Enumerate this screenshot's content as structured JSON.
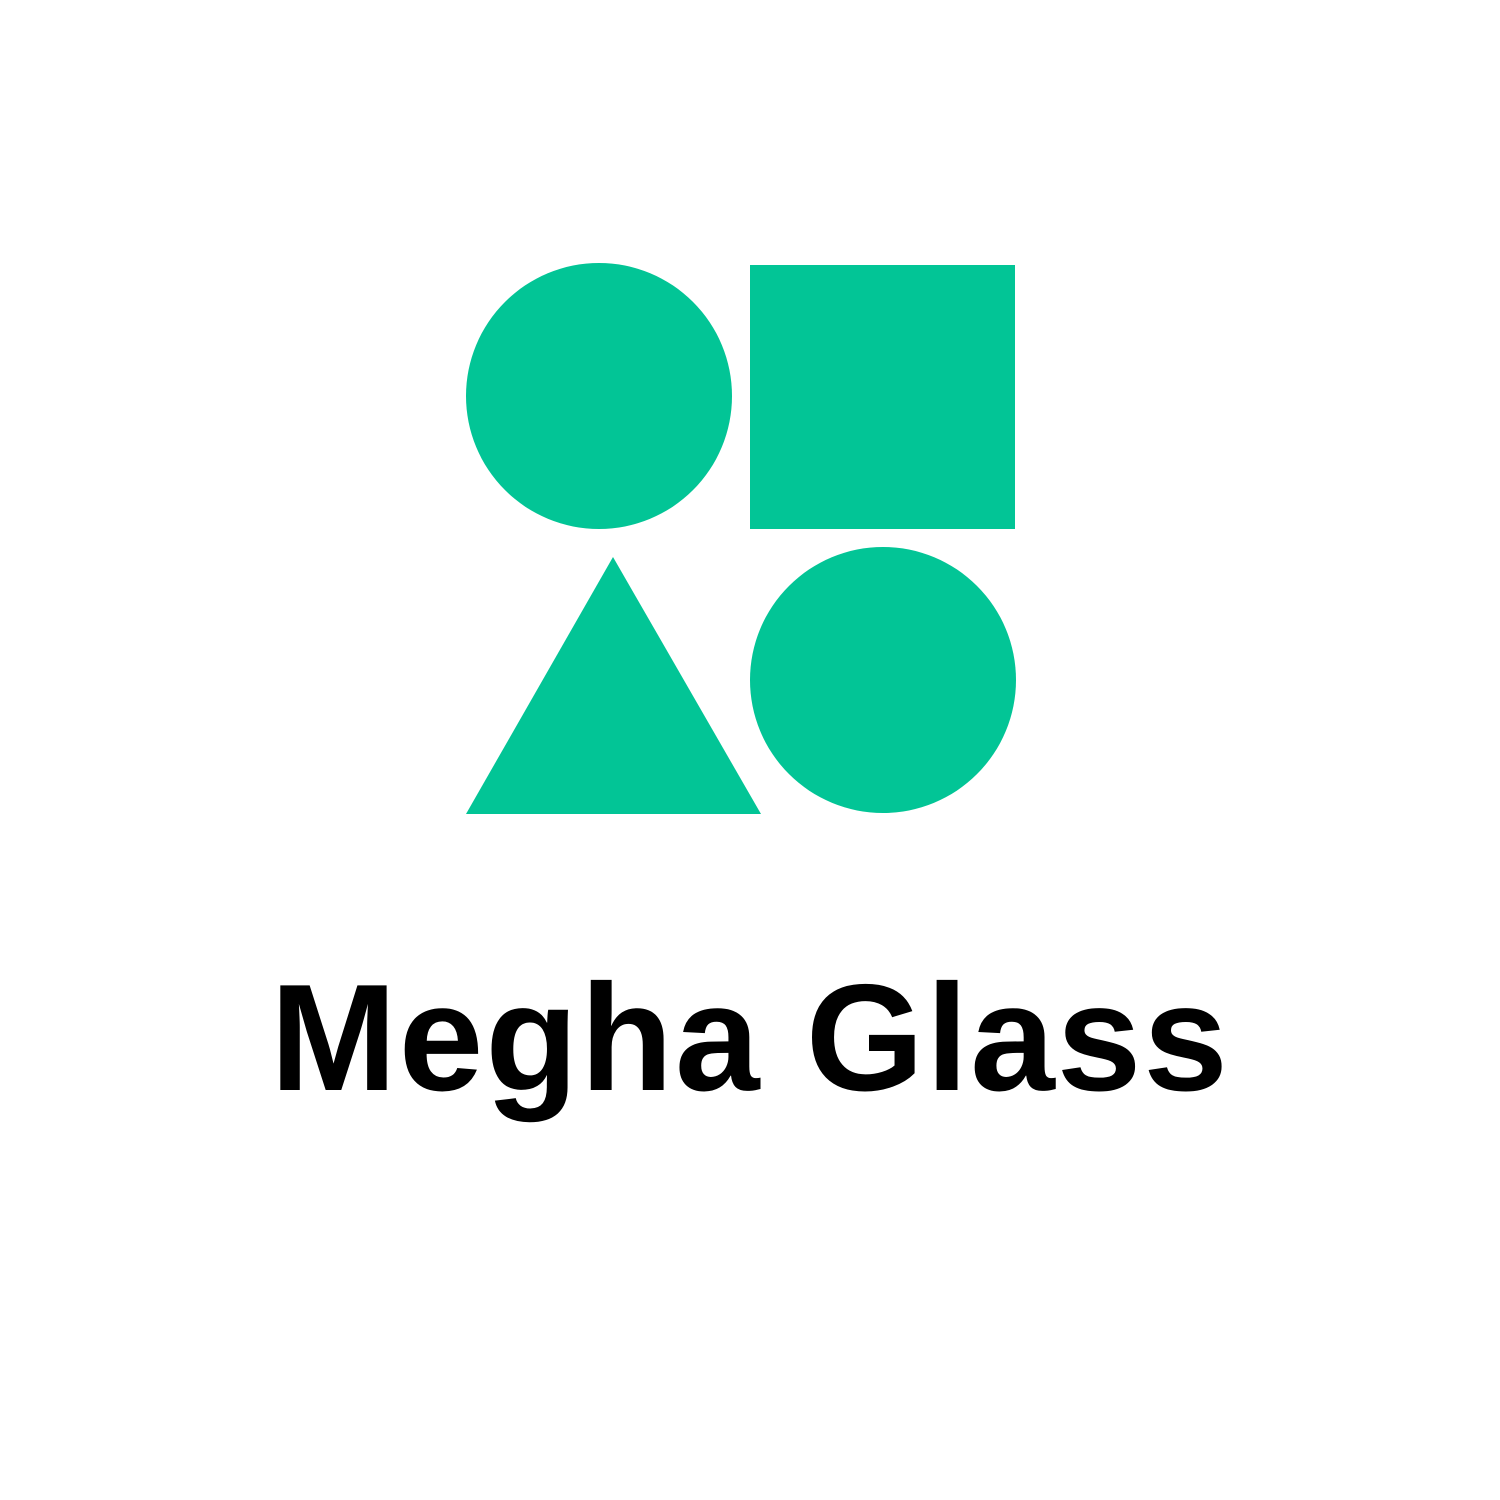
{
  "brand": {
    "name": "Megha Glass",
    "accent_color": "#02C596",
    "text_color": "#000000",
    "background_color": "#FFFFFF"
  },
  "logo": {
    "shapes": [
      "circle-icon",
      "square-icon",
      "triangle-icon",
      "circle-icon"
    ]
  }
}
